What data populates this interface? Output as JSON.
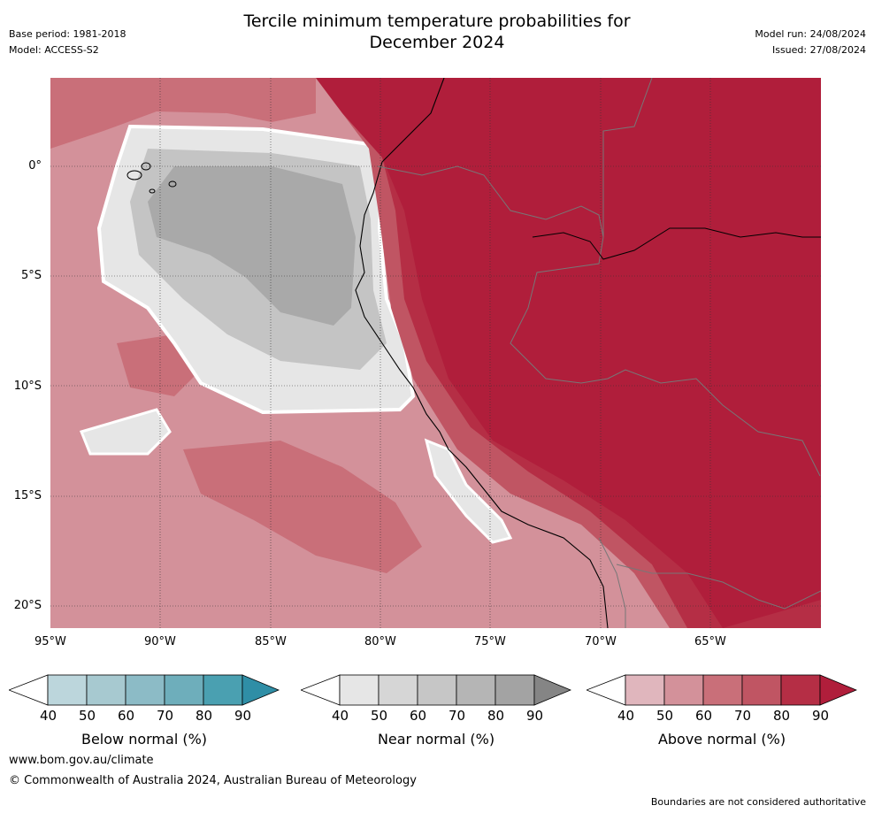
{
  "header": {
    "title_line1": "Tercile minimum temperature probabilities for",
    "title_line2": "December 2024",
    "base_period": "Base period: 1981-2018",
    "model": "Model: ACCESS-S2",
    "model_run": "Model run: 24/08/2024",
    "issued": "Issued: 27/08/2024"
  },
  "map": {
    "lon_ticks": [
      "95°W",
      "90°W",
      "85°W",
      "80°W",
      "75°W",
      "70°W",
      "65°W"
    ],
    "lat_ticks": [
      "0°",
      "5°S",
      "10°S",
      "15°S",
      "20°S"
    ],
    "colors": {
      "near_40": "#e6e6e6",
      "near_50": "#d4d4d4",
      "near_60": "#c4c4c4",
      "near_70": "#a9a9a9",
      "above_40": "#e0b6bd",
      "above_50": "#d3919a",
      "above_60": "#c96f79",
      "above_70": "#c05563",
      "above_80": "#b52e45",
      "above_90": "#b01e3b"
    }
  },
  "colorbars": [
    {
      "id": "below",
      "label": "Below normal (%)",
      "ticks": [
        "40",
        "50",
        "60",
        "70",
        "80",
        "90"
      ],
      "colors": [
        "#bcd6dc",
        "#a7c9d0",
        "#8cbbc6",
        "#6eaebb",
        "#4aa0b1",
        "#2f8ea6"
      ]
    },
    {
      "id": "near",
      "label": "Near normal (%)",
      "ticks": [
        "40",
        "50",
        "60",
        "70",
        "80",
        "90"
      ],
      "colors": [
        "#e6e6e6",
        "#d6d6d6",
        "#c6c6c6",
        "#b5b5b5",
        "#a3a3a3",
        "#858585"
      ]
    },
    {
      "id": "above",
      "label": "Above normal (%)",
      "ticks": [
        "40",
        "50",
        "60",
        "70",
        "80",
        "90"
      ],
      "colors": [
        "#e0b6bd",
        "#d3919a",
        "#c96f79",
        "#c05563",
        "#b52e45",
        "#b01e3b"
      ]
    }
  ],
  "footer": {
    "website": "www.bom.gov.au/climate",
    "copyright": "© Commonwealth of Australia 2024, Australian Bureau of Meteorology",
    "disclaimer": "Boundaries are not considered authoritative"
  }
}
